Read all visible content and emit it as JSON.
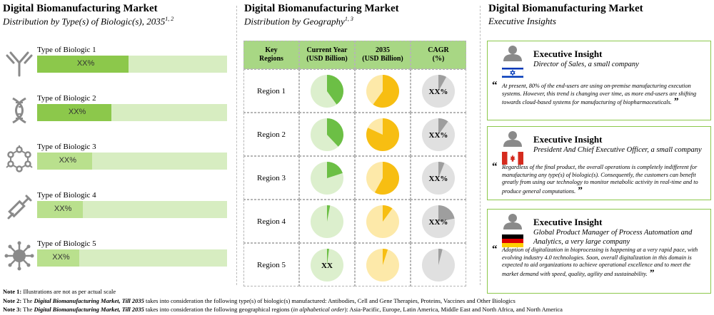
{
  "left": {
    "title": "Digital Biomanufacturing Market",
    "subtitle": "Distribution by Type(s) of Biologic(s), 2035",
    "subtitle_sup": "1, 2",
    "rows": [
      {
        "label": "Type of Biologic 1",
        "value_label": "XX%",
        "fill": 0.48,
        "icon": "antibody-icon"
      },
      {
        "label": "Type of Biologic 2",
        "value_label": "XX%",
        "fill": 0.39,
        "icon": "dna-icon"
      },
      {
        "label": "Type of Biologic 3",
        "value_label": "XX%",
        "fill": 0.29,
        "icon": "molecule-icon"
      },
      {
        "label": "Type of Biologic 4",
        "value_label": "XX%",
        "fill": 0.24,
        "icon": "syringe-icon"
      },
      {
        "label": "Type of Biologic 5",
        "value_label": "XX%",
        "fill": 0.22,
        "icon": "virus-icon"
      }
    ],
    "colors": {
      "fill": "#8cc84b",
      "track": "#d7edc1"
    }
  },
  "middle": {
    "title": "Digital Biomanufacturing Market",
    "subtitle": "Distribution by Geography",
    "subtitle_sup": "1, 3",
    "headers": {
      "regions": [
        "Key",
        "Regions"
      ],
      "current": [
        "Current Year",
        "(USD Billion)"
      ],
      "future": [
        "2035",
        "(USD Billion)"
      ],
      "cagr": [
        "CAGR",
        "(%)"
      ]
    },
    "rows": [
      {
        "region": "Region 1",
        "current": 0.4,
        "future": 0.6,
        "cagr": 0.08,
        "cagr_label": "XX%",
        "current_label": ""
      },
      {
        "region": "Region 2",
        "current": 0.38,
        "future": 0.82,
        "cagr": 0.1,
        "cagr_label": "XX%",
        "current_label": ""
      },
      {
        "region": "Region 3",
        "current": 0.2,
        "future": 0.58,
        "cagr": 0.06,
        "cagr_label": "XX%",
        "current_label": ""
      },
      {
        "region": "Region 4",
        "current": 0.03,
        "future": 0.1,
        "cagr": 0.22,
        "cagr_label": "XX%",
        "current_label": ""
      },
      {
        "region": "Region 5",
        "current": 0.02,
        "future": 0.05,
        "cagr": 0.04,
        "cagr_label": "",
        "current_label": "XX"
      }
    ],
    "colors": {
      "current": "#6cbf45",
      "current_bg": "#dcefcd",
      "future": "#f7be12",
      "future_bg": "#fde9a9",
      "cagr": "#9e9e9e",
      "cagr_bg": "#e0e0e0"
    }
  },
  "right": {
    "title": "Digital Biomanufacturing Market",
    "subtitle": "Executive Insights",
    "insights": [
      {
        "title": "Executive Insight",
        "role": "Director of Sales, a small company",
        "flag": "israel",
        "quote": "At present, 80% of the end-users are using on-premise manufacturing execution systems. However, this trend is changing over time, as more end-users are shifting towards cloud-based systems for manufacturing of biopharmaceuticals."
      },
      {
        "title": "Executive Insight",
        "role": "President And Chief Executive Officer, a small company",
        "flag": "canada",
        "quote": "Regardless of the final product, the overall operations is completely indifferent for manufacturing any type(s) of biologic(s). Consequently, the customers can benefit greatly from using our technology to monitor metabolic activity in real-time and to produce general computations."
      },
      {
        "title": "Executive Insight",
        "role": "Global Product Manager of Process Automation and Analytics, a very large company",
        "flag": "germany",
        "quote": "Adoption of digitalization in bioprocessing is happening at a very rapid pace, with evolving industry 4.0 technologies. Soon, overall digitalization in this domain is expected to aid organizations to achieve operational excellence and to meet the market demand with speed, quality, agility and sustainability."
      }
    ],
    "quote_open": "“",
    "quote_close": "”"
  },
  "notes": [
    {
      "label": "Note 1:",
      "segments": [
        {
          "t": " Illustrations are not as per actual scale",
          "s": ""
        }
      ]
    },
    {
      "label": "Note 2:",
      "segments": [
        {
          "t": " The ",
          "s": ""
        },
        {
          "t": "Digital Biomanufacturing Market, Till 2035",
          "s": "bi"
        },
        {
          "t": " takes into consideration the following type(s) of biologic(s) manufactured: Antibodies, Cell and Gene Therapies, Proteins, Vaccines and Other Biologics",
          "s": ""
        }
      ]
    },
    {
      "label": "Note 3:",
      "segments": [
        {
          "t": " The ",
          "s": ""
        },
        {
          "t": "Digital Biomanufacturing Market, Till 2035",
          "s": "bi"
        },
        {
          "t": " takes into consideration the following geographical regions (",
          "s": ""
        },
        {
          "t": "in alphabetical order",
          "s": "i"
        },
        {
          "t": "): Asia-Pacific, Europe, Latin America, Middle East and North Africa, and North America",
          "s": ""
        }
      ]
    }
  ]
}
